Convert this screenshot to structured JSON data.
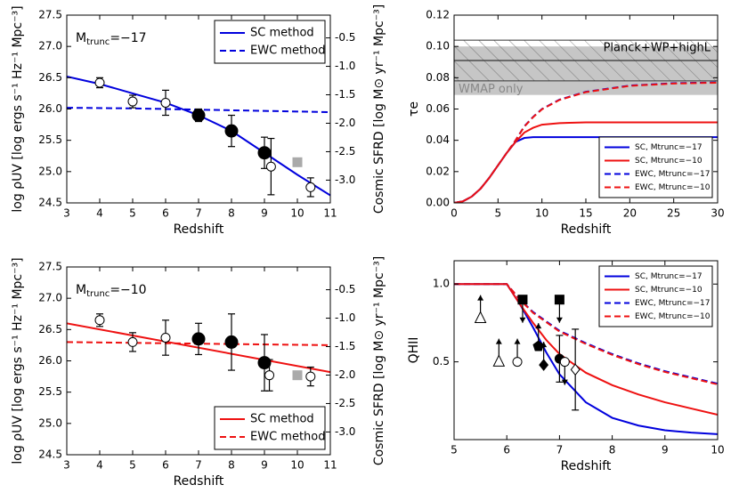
{
  "chart_data": [
    {
      "type": "line",
      "xlabel": "Redshift",
      "ylabel": "log ρUV [log ergs s⁻¹ Hz⁻¹ Mpc⁻³]",
      "y2label": "Cosmic SFRD [log M⊙ yr⁻¹ Mpc⁻³]",
      "annotation": [
        "M",
        "trunc",
        "=−17"
      ],
      "xlim": [
        3,
        11
      ],
      "xticks": [
        3,
        4,
        5,
        6,
        7,
        8,
        9,
        10,
        11
      ],
      "ylim": [
        24.5,
        27.5
      ],
      "yticks": [
        24.5,
        {
          "value": 25,
          "label": "25.0"
        },
        25.5,
        {
          "value": 26,
          "label": "26.0"
        },
        26.5,
        {
          "value": 27,
          "label": "27.0"
        },
        27.5
      ],
      "y2lim": [
        -3.4,
        -0.1
      ],
      "y2ticks": [
        {
          "value": -3,
          "label": "-3.0"
        },
        -2.5,
        {
          "value": -2,
          "label": "-2.0"
        },
        -1.5,
        {
          "value": -1,
          "label": "-1.0"
        },
        -0.5
      ],
      "legend": "upper right",
      "series": [
        {
          "name": "SC method",
          "color": "#0000dd",
          "dash": false,
          "x": [
            3,
            4,
            5,
            6,
            7,
            8,
            9,
            10,
            11
          ],
          "values": [
            26.52,
            26.4,
            26.25,
            26.1,
            25.9,
            25.65,
            25.3,
            24.95,
            24.62
          ]
        },
        {
          "name": "EWC method",
          "color": "#0000dd",
          "dash": true,
          "x": [
            3,
            5,
            7,
            9,
            11
          ],
          "values": [
            26.02,
            26.01,
            25.99,
            25.97,
            25.95
          ]
        }
      ],
      "points": [
        {
          "x": 4,
          "y": 26.42,
          "err": 0.08,
          "marker": "o",
          "fill": "white",
          "size": 5
        },
        {
          "x": 5,
          "y": 26.12,
          "err": 0.1,
          "marker": "o",
          "fill": "white",
          "size": 5
        },
        {
          "x": 6,
          "y": 26.1,
          "err": 0.2,
          "marker": "o",
          "fill": "white",
          "size": 5
        },
        {
          "x": 7,
          "y": 25.9,
          "err": 0.1,
          "marker": "o",
          "fill": "black",
          "size": 7
        },
        {
          "x": 8,
          "y": 25.65,
          "err": 0.25,
          "marker": "o",
          "fill": "black",
          "size": 7
        },
        {
          "x": 9,
          "y": 25.3,
          "err": 0.25,
          "marker": "o",
          "fill": "black",
          "size": 7
        },
        {
          "x": 9.2,
          "y": 25.08,
          "err": 0.45,
          "marker": "o",
          "fill": "white",
          "size": 5
        },
        {
          "x": 10,
          "y": 25.15,
          "marker": "s",
          "fill": "#aaaaaa",
          "size": 5
        },
        {
          "x": 10.4,
          "y": 24.75,
          "err": 0.15,
          "marker": "o",
          "fill": "white",
          "size": 5
        }
      ]
    },
    {
      "type": "line",
      "xlabel": "Redshift",
      "ylabel": "τe",
      "xlim": [
        0,
        30
      ],
      "xticks": [
        0,
        5,
        10,
        15,
        20,
        25,
        30
      ],
      "ylim": [
        0,
        0.12
      ],
      "yticks": [
        {
          "value": 0,
          "label": "0.00"
        },
        {
          "value": 0.02,
          "label": "0.02"
        },
        {
          "value": 0.04,
          "label": "0.04"
        },
        {
          "value": 0.06,
          "label": "0.06"
        },
        {
          "value": 0.08,
          "label": "0.08"
        },
        {
          "value": 0.1,
          "label": "0.10"
        },
        {
          "value": 0.12,
          "label": "0.12"
        }
      ],
      "legend": "lower right",
      "bands": [
        {
          "label": "WMAP only",
          "range": [
            0.069,
            0.1
          ],
          "color": "#c0c0c0"
        },
        {
          "label": "Planck+WP+highL",
          "range": [
            0.078,
            0.104
          ],
          "center": 0.091,
          "hatch": true
        }
      ],
      "series": [
        {
          "name": "SC, Mtrunc=−17",
          "color": "#0000dd",
          "dash": false,
          "x": [
            0,
            1,
            2,
            3,
            4,
            5,
            6,
            7,
            8,
            9,
            10,
            15,
            20,
            25,
            30
          ],
          "values": [
            0,
            0.001,
            0.004,
            0.009,
            0.016,
            0.024,
            0.032,
            0.039,
            0.0415,
            0.042,
            0.042,
            0.042,
            0.042,
            0.042,
            0.042
          ]
        },
        {
          "name": "SC, Mtrunc=−10",
          "color": "#ee1111",
          "dash": false,
          "x": [
            0,
            1,
            2,
            3,
            4,
            5,
            6,
            7,
            8,
            9,
            10,
            12,
            15,
            20,
            25,
            30
          ],
          "values": [
            0,
            0.001,
            0.004,
            0.009,
            0.016,
            0.024,
            0.032,
            0.039,
            0.045,
            0.048,
            0.05,
            0.051,
            0.0515,
            0.0515,
            0.0515,
            0.0515
          ]
        },
        {
          "name": "EWC, Mtrunc=−17",
          "color": "#0000dd",
          "dash": true,
          "x": [
            0,
            1,
            2,
            3,
            4,
            5,
            6,
            7,
            8,
            9,
            10,
            12,
            15,
            20,
            25,
            30
          ],
          "values": [
            0,
            0.001,
            0.004,
            0.009,
            0.016,
            0.024,
            0.032,
            0.04,
            0.049,
            0.055,
            0.06,
            0.066,
            0.071,
            0.075,
            0.0765,
            0.077
          ]
        },
        {
          "name": "EWC, Mtrunc=−10",
          "color": "#ee1111",
          "dash": true,
          "x": [
            0,
            1,
            2,
            3,
            4,
            5,
            6,
            7,
            8,
            9,
            10,
            12,
            15,
            20,
            25,
            30
          ],
          "values": [
            0,
            0.001,
            0.004,
            0.009,
            0.016,
            0.024,
            0.032,
            0.04,
            0.0488,
            0.0548,
            0.0598,
            0.0658,
            0.0708,
            0.0748,
            0.0763,
            0.0768
          ]
        }
      ]
    },
    {
      "type": "line",
      "xlabel": "Redshift",
      "ylabel": "log ρUV [log ergs s⁻¹ Hz⁻¹ Mpc⁻³]",
      "y2label": "Cosmic SFRD [log M⊙ yr⁻¹ Mpc⁻³]",
      "annotation": [
        "M",
        "trunc",
        "=−10"
      ],
      "xlim": [
        3,
        11
      ],
      "xticks": [
        3,
        4,
        5,
        6,
        7,
        8,
        9,
        10,
        11
      ],
      "ylim": [
        24.5,
        27.5
      ],
      "yticks": [
        24.5,
        {
          "value": 25,
          "label": "25.0"
        },
        25.5,
        {
          "value": 26,
          "label": "26.0"
        },
        26.5,
        {
          "value": 27,
          "label": "27.0"
        },
        27.5
      ],
      "y2lim": [
        -3.4,
        -0.1
      ],
      "y2ticks": [
        {
          "value": -3,
          "label": "-3.0"
        },
        -2.5,
        {
          "value": -2,
          "label": "-2.0"
        },
        -1.5,
        {
          "value": -1,
          "label": "-1.0"
        },
        -0.5
      ],
      "legend": "lower right",
      "series": [
        {
          "name": "SC method",
          "color": "#ee1111",
          "dash": false,
          "x": [
            3,
            11
          ],
          "values": [
            26.6,
            25.82
          ]
        },
        {
          "name": "EWC method",
          "color": "#ee1111",
          "dash": true,
          "x": [
            3,
            11
          ],
          "values": [
            26.3,
            26.25
          ]
        }
      ],
      "points": [
        {
          "x": 4,
          "y": 26.65,
          "err": 0.1,
          "marker": "o",
          "fill": "white",
          "size": 5
        },
        {
          "x": 5,
          "y": 26.3,
          "err": 0.15,
          "marker": "o",
          "fill": "white",
          "size": 5
        },
        {
          "x": 6,
          "y": 26.37,
          "err": 0.28,
          "marker": "o",
          "fill": "white",
          "size": 5
        },
        {
          "x": 7,
          "y": 26.35,
          "err": 0.25,
          "marker": "o",
          "fill": "black",
          "size": 7
        },
        {
          "x": 8,
          "y": 26.3,
          "err": 0.45,
          "marker": "o",
          "fill": "black",
          "size": 7
        },
        {
          "x": 9,
          "y": 25.97,
          "err": 0.45,
          "marker": "o",
          "fill": "black",
          "size": 7
        },
        {
          "x": 9.15,
          "y": 25.77,
          "err": 0.25,
          "marker": "o",
          "fill": "white",
          "size": 5
        },
        {
          "x": 10,
          "y": 25.77,
          "marker": "s",
          "fill": "#aaaaaa",
          "size": 5
        },
        {
          "x": 10.4,
          "y": 25.75,
          "err": 0.15,
          "marker": "o",
          "fill": "white",
          "size": 5
        }
      ]
    },
    {
      "type": "line",
      "xlabel": "Redshift",
      "ylabel": "QHII",
      "xlim": [
        5,
        10
      ],
      "xticks": [
        5,
        6,
        7,
        8,
        9,
        10
      ],
      "ylim": [
        0,
        1.15
      ],
      "yticks": [
        0.5,
        {
          "value": 1,
          "label": "1.0"
        }
      ],
      "legend": "upper right",
      "series": [
        {
          "name": "SC, Mtrunc=−17",
          "color": "#0000dd",
          "dash": false,
          "x": [
            5,
            6,
            6.25,
            6.5,
            6.75,
            7,
            7.5,
            8,
            8.5,
            9,
            9.5,
            10
          ],
          "values": [
            1,
            1,
            0.87,
            0.72,
            0.56,
            0.42,
            0.24,
            0.14,
            0.09,
            0.06,
            0.045,
            0.035
          ]
        },
        {
          "name": "SC, Mtrunc=−10",
          "color": "#ee1111",
          "dash": false,
          "x": [
            5,
            6,
            6.25,
            6.5,
            6.75,
            7,
            7.5,
            8,
            8.5,
            9,
            9.5,
            10
          ],
          "values": [
            1,
            1,
            0.87,
            0.75,
            0.64,
            0.55,
            0.43,
            0.35,
            0.29,
            0.24,
            0.2,
            0.16
          ]
        },
        {
          "name": "EWC, Mtrunc=−17",
          "color": "#0000dd",
          "dash": true,
          "x": [
            5,
            6,
            6.25,
            6.5,
            6.75,
            7,
            7.5,
            8,
            8.5,
            9,
            9.5,
            10
          ],
          "values": [
            1,
            1,
            0.9,
            0.82,
            0.76,
            0.7,
            0.62,
            0.55,
            0.49,
            0.44,
            0.4,
            0.36
          ]
        },
        {
          "name": "EWC, Mtrunc=−10",
          "color": "#ee1111",
          "dash": true,
          "x": [
            5,
            6,
            6.25,
            6.5,
            6.75,
            7,
            7.5,
            8,
            8.5,
            9,
            9.5,
            10
          ],
          "values": [
            1,
            1,
            0.9,
            0.815,
            0.755,
            0.695,
            0.615,
            0.545,
            0.485,
            0.435,
            0.395,
            0.355
          ]
        }
      ],
      "points": [
        {
          "x": 5.5,
          "y": 0.78,
          "marker": "^",
          "fill": "white",
          "size": 6,
          "limit": "up"
        },
        {
          "x": 5.85,
          "y": 0.5,
          "marker": "^",
          "fill": "white",
          "size": 6,
          "limit": "up"
        },
        {
          "x": 6.2,
          "y": 0.5,
          "marker": "o",
          "fill": "white",
          "size": 5,
          "limit": "up"
        },
        {
          "x": 6.3,
          "y": 0.9,
          "marker": "s",
          "fill": "black",
          "size": 5,
          "limit": "down"
        },
        {
          "x": 6.6,
          "y": 0.6,
          "marker": "p",
          "fill": "black",
          "size": 6,
          "limit": "up"
        },
        {
          "x": 6.7,
          "y": 0.48,
          "marker": "D",
          "fill": "black",
          "size": 6,
          "limit": "up"
        },
        {
          "x": 7,
          "y": 0.9,
          "marker": "s",
          "fill": "black",
          "size": 5,
          "limit": "down"
        },
        {
          "x": 7,
          "y": 0.52,
          "err": 0.15,
          "marker": "o",
          "fill": "black",
          "size": 5
        },
        {
          "x": 7.1,
          "y": 0.5,
          "marker": "o",
          "fill": "white",
          "size": 5,
          "limit": "down"
        },
        {
          "x": 7.3,
          "y": 0.45,
          "err": 0.26,
          "marker": "D",
          "fill": "white",
          "size": 6
        }
      ]
    }
  ]
}
